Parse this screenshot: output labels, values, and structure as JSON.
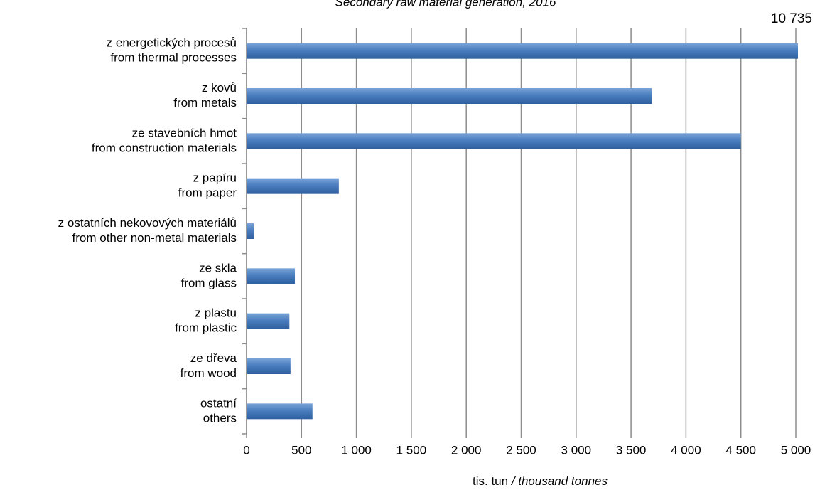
{
  "chart_data": {
    "type": "barh",
    "title": "Secondary raw material generation, 2016",
    "x_label": [
      "tis. tun ",
      "/ thousand tonnes"
    ],
    "categories": [
      [
        "z energetických procesů",
        "from thermal processes"
      ],
      [
        "z kovů",
        "from metals"
      ],
      [
        "ze stavebních hmot",
        "from construction materials"
      ],
      [
        "z papíru",
        "from paper"
      ],
      [
        "z ostatních nekovových materiálů",
        "from other non-metal materials"
      ],
      [
        "ze skla",
        "from glass"
      ],
      [
        "z plastu",
        "from plastic"
      ],
      [
        "ze dřeva",
        "from wood"
      ],
      [
        "ostatní",
        "others"
      ]
    ],
    "values": [
      10735,
      3690,
      4500,
      840,
      65,
      440,
      390,
      400,
      600
    ],
    "value_labels": [
      "10 735",
      null,
      null,
      null,
      null,
      null,
      null,
      null,
      null
    ],
    "value_label_color": "#ff0000",
    "color": "#4a7ebf",
    "xlim": [
      0,
      5000
    ],
    "xticks": [
      0,
      500,
      {
        "value": 1000,
        "label": "1 000"
      },
      {
        "value": 1500,
        "label": "1 500"
      },
      {
        "value": 2000,
        "label": "2 000"
      },
      {
        "value": 2500,
        "label": "2 500"
      },
      {
        "value": 3000,
        "label": "3 000"
      },
      {
        "value": 3500,
        "label": "3 500"
      },
      {
        "value": 4000,
        "label": "4 000"
      },
      {
        "value": 4500,
        "label": "4 500"
      },
      {
        "value": 5000,
        "label": "5 000"
      }
    ],
    "grid": true
  }
}
